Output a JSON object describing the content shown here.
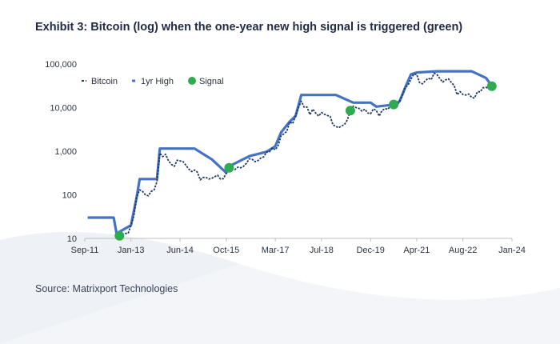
{
  "header": {
    "title": "Exhibit 3: Bitcoin (log) when the one-year new high signal is triggered (green)"
  },
  "footer": {
    "source": "Source: Matrixport Technologies"
  },
  "colors": {
    "bitcoin": "#1f3864",
    "high": "#4472c4",
    "signal": "#2eaa4f",
    "axis": "#bfbfbf"
  },
  "chart_data": {
    "type": "line",
    "y_scale": "log",
    "ylim": [
      10,
      100000
    ],
    "y_ticks": [
      {
        "value": 10,
        "label": "10"
      },
      {
        "value": 100,
        "label": "100"
      },
      {
        "value": 1000,
        "label": "1,000"
      },
      {
        "value": 10000,
        "label": "10,000"
      },
      {
        "value": 100000,
        "label": "100,000"
      }
    ],
    "xlim": [
      "2011-09",
      "2024-01"
    ],
    "x_ticks": [
      {
        "value": "2011-09",
        "label": "Sep-11"
      },
      {
        "value": "2013-01",
        "label": "Jan-13"
      },
      {
        "value": "2014-06",
        "label": "Jun-14"
      },
      {
        "value": "2015-10",
        "label": "Oct-15"
      },
      {
        "value": "2017-03",
        "label": "Mar-17"
      },
      {
        "value": "2018-07",
        "label": "Jul-18"
      },
      {
        "value": "2019-12",
        "label": "Dec-19"
      },
      {
        "value": "2021-04",
        "label": "Apr-21"
      },
      {
        "value": "2022-08",
        "label": "Aug-22"
      },
      {
        "value": "2024-01",
        "label": "Jan-24"
      }
    ],
    "legend_position": "top-left",
    "series": [
      {
        "name": "Bitcoin",
        "style": "dashed",
        "points": [
          [
            "2012-08",
            12
          ],
          [
            "2012-09",
            11
          ],
          [
            "2012-10",
            12
          ],
          [
            "2012-11",
            13
          ],
          [
            "2012-12",
            13
          ],
          [
            "2013-01",
            20
          ],
          [
            "2013-02",
            33
          ],
          [
            "2013-03",
            90
          ],
          [
            "2013-04",
            130
          ],
          [
            "2013-05",
            120
          ],
          [
            "2013-06",
            100
          ],
          [
            "2013-07",
            95
          ],
          [
            "2013-08",
            120
          ],
          [
            "2013-09",
            130
          ],
          [
            "2013-10",
            200
          ],
          [
            "2013-11",
            900
          ],
          [
            "2013-12",
            750
          ],
          [
            "2014-01",
            850
          ],
          [
            "2014-02",
            600
          ],
          [
            "2014-03",
            500
          ],
          [
            "2014-04",
            450
          ],
          [
            "2014-05",
            620
          ],
          [
            "2014-06",
            600
          ],
          [
            "2014-07",
            580
          ],
          [
            "2014-08",
            480
          ],
          [
            "2014-09",
            390
          ],
          [
            "2014-10",
            340
          ],
          [
            "2014-11",
            370
          ],
          [
            "2014-12",
            330
          ],
          [
            "2015-01",
            220
          ],
          [
            "2015-02",
            250
          ],
          [
            "2015-03",
            250
          ],
          [
            "2015-04",
            230
          ],
          [
            "2015-05",
            240
          ],
          [
            "2015-06",
            260
          ],
          [
            "2015-07",
            280
          ],
          [
            "2015-08",
            230
          ],
          [
            "2015-09",
            235
          ],
          [
            "2015-10",
            310
          ],
          [
            "2015-11",
            370
          ],
          [
            "2015-12",
            430
          ],
          [
            "2016-01",
            380
          ],
          [
            "2016-02",
            430
          ],
          [
            "2016-03",
            415
          ],
          [
            "2016-04",
            450
          ],
          [
            "2016-05",
            530
          ],
          [
            "2016-06",
            670
          ],
          [
            "2016-07",
            650
          ],
          [
            "2016-08",
            575
          ],
          [
            "2016-09",
            610
          ],
          [
            "2016-10",
            700
          ],
          [
            "2016-11",
            740
          ],
          [
            "2016-12",
            960
          ],
          [
            "2017-01",
            970
          ],
          [
            "2017-02",
            1190
          ],
          [
            "2017-03",
            1080
          ],
          [
            "2017-04",
            1350
          ],
          [
            "2017-05",
            2300
          ],
          [
            "2017-06",
            2500
          ],
          [
            "2017-07",
            2870
          ],
          [
            "2017-08",
            4700
          ],
          [
            "2017-09",
            4300
          ],
          [
            "2017-10",
            6400
          ],
          [
            "2017-11",
            10000
          ],
          [
            "2017-12",
            14000
          ],
          [
            "2018-01",
            10200
          ],
          [
            "2018-02",
            10300
          ],
          [
            "2018-03",
            6900
          ],
          [
            "2018-04",
            9200
          ],
          [
            "2018-05",
            7500
          ],
          [
            "2018-06",
            6400
          ],
          [
            "2018-07",
            7700
          ],
          [
            "2018-08",
            7000
          ],
          [
            "2018-09",
            6600
          ],
          [
            "2018-10",
            6300
          ],
          [
            "2018-11",
            4000
          ],
          [
            "2018-12",
            3700
          ],
          [
            "2019-01",
            3450
          ],
          [
            "2019-02",
            3800
          ],
          [
            "2019-03",
            4100
          ],
          [
            "2019-04",
            5300
          ],
          [
            "2019-05",
            8500
          ],
          [
            "2019-06",
            10800
          ],
          [
            "2019-07",
            10000
          ],
          [
            "2019-08",
            9600
          ],
          [
            "2019-09",
            8300
          ],
          [
            "2019-10",
            9200
          ],
          [
            "2019-11",
            7550
          ],
          [
            "2019-12",
            7200
          ],
          [
            "2020-01",
            9350
          ],
          [
            "2020-02",
            8600
          ],
          [
            "2020-03",
            6400
          ],
          [
            "2020-04",
            8600
          ],
          [
            "2020-05",
            9450
          ],
          [
            "2020-06",
            9140
          ],
          [
            "2020-07",
            11300
          ],
          [
            "2020-08",
            11650
          ],
          [
            "2020-09",
            10780
          ],
          [
            "2020-10",
            13800
          ],
          [
            "2020-11",
            19700
          ],
          [
            "2020-12",
            29000
          ],
          [
            "2021-01",
            33100
          ],
          [
            "2021-02",
            45100
          ],
          [
            "2021-03",
            58800
          ],
          [
            "2021-04",
            57700
          ],
          [
            "2021-05",
            37300
          ],
          [
            "2021-06",
            35000
          ],
          [
            "2021-07",
            41500
          ],
          [
            "2021-08",
            47100
          ],
          [
            "2021-09",
            43800
          ],
          [
            "2021-10",
            61300
          ],
          [
            "2021-11",
            57000
          ],
          [
            "2021-12",
            46300
          ],
          [
            "2022-01",
            38500
          ],
          [
            "2022-02",
            43200
          ],
          [
            "2022-03",
            45500
          ],
          [
            "2022-04",
            37700
          ],
          [
            "2022-05",
            31800
          ],
          [
            "2022-06",
            19800
          ],
          [
            "2022-07",
            23300
          ],
          [
            "2022-08",
            20000
          ],
          [
            "2022-09",
            19400
          ],
          [
            "2022-10",
            20500
          ],
          [
            "2022-11",
            17200
          ],
          [
            "2022-12",
            16500
          ],
          [
            "2023-01",
            23100
          ],
          [
            "2023-02",
            23100
          ],
          [
            "2023-03",
            28500
          ],
          [
            "2023-04",
            29200
          ],
          [
            "2023-05",
            27200
          ],
          [
            "2023-06",
            30500
          ]
        ]
      },
      {
        "name": "1yr High",
        "style": "solid",
        "points": [
          [
            "2011-10",
            30
          ],
          [
            "2012-07",
            30
          ],
          [
            "2012-08",
            13
          ],
          [
            "2013-01",
            20
          ],
          [
            "2013-03",
            90
          ],
          [
            "2013-04",
            230
          ],
          [
            "2013-10",
            230
          ],
          [
            "2013-11",
            1150
          ],
          [
            "2014-11",
            1150
          ],
          [
            "2015-05",
            650
          ],
          [
            "2015-10",
            320
          ],
          [
            "2015-11",
            450
          ],
          [
            "2016-06",
            770
          ],
          [
            "2016-12",
            970
          ],
          [
            "2017-03",
            1300
          ],
          [
            "2017-05",
            2700
          ],
          [
            "2017-08",
            4800
          ],
          [
            "2017-10",
            6400
          ],
          [
            "2017-11",
            11000
          ],
          [
            "2017-12",
            19500
          ],
          [
            "2018-12",
            19500
          ],
          [
            "2019-06",
            13000
          ],
          [
            "2019-12",
            13000
          ],
          [
            "2020-02",
            10500
          ],
          [
            "2020-07",
            11500
          ],
          [
            "2020-10",
            13800
          ],
          [
            "2020-11",
            19700
          ],
          [
            "2020-12",
            29000
          ],
          [
            "2021-01",
            41000
          ],
          [
            "2021-02",
            58000
          ],
          [
            "2021-04",
            64000
          ],
          [
            "2021-11",
            68000
          ],
          [
            "2022-11",
            68000
          ],
          [
            "2023-04",
            48000
          ],
          [
            "2023-06",
            31500
          ]
        ]
      }
    ],
    "signals": {
      "name": "Signal",
      "points": [
        [
          "2012-09",
          11.5
        ],
        [
          "2015-11",
          415
        ],
        [
          "2019-05",
          8500
        ],
        [
          "2020-08",
          11800
        ],
        [
          "2023-06",
          31000
        ]
      ]
    }
  }
}
